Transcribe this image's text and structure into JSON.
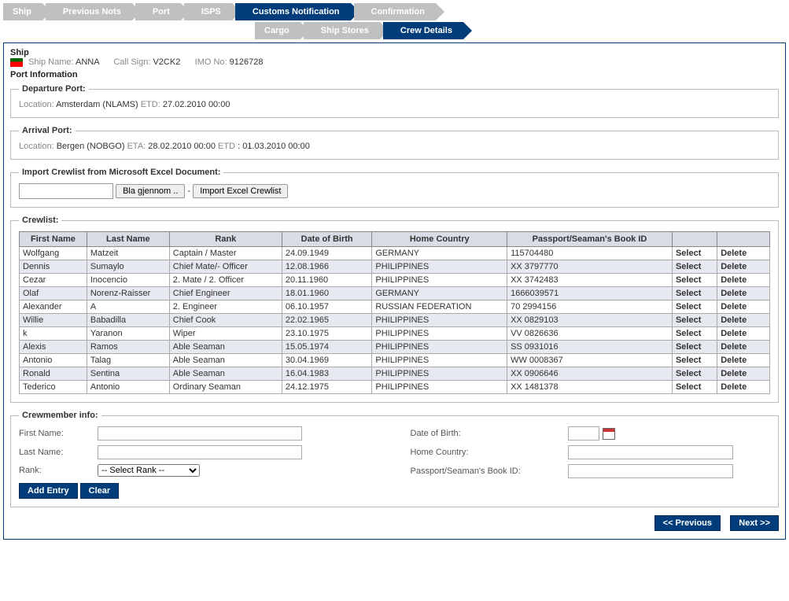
{
  "colors": {
    "accent": "#003d7a",
    "bc_inactive": "#c0c0c0",
    "th_bg": "#d8dde5",
    "row_alt": "#e6e9ef"
  },
  "breadcrumb": {
    "row1": [
      {
        "label": "Ship",
        "active": false
      },
      {
        "label": "Previous Nots",
        "active": false
      },
      {
        "label": "Port",
        "active": false
      },
      {
        "label": "ISPS",
        "active": false
      },
      {
        "label": "Customs Notification",
        "active": true
      },
      {
        "label": "Confirmation",
        "active": false
      }
    ],
    "row2": [
      {
        "label": "Cargo",
        "active": false
      },
      {
        "label": "Ship Stores",
        "active": false
      },
      {
        "label": "Crew Details",
        "active": true
      }
    ]
  },
  "ship": {
    "heading": "Ship",
    "name_label": "Ship Name:",
    "name": "ANNA",
    "callsign_label": "Call Sign:",
    "callsign": "V2CK2",
    "imo_label": "IMO No:",
    "imo": "9126728"
  },
  "port": {
    "heading": "Port Information",
    "departure": {
      "legend": "Departure Port:",
      "location_label": "Location:",
      "location": "Amsterdam (NLAMS)",
      "etd_label": "ETD:",
      "etd": "27.02.2010 00:00"
    },
    "arrival": {
      "legend": "Arrival Port:",
      "location_label": "Location:",
      "location": "Bergen (NOBGO)",
      "eta_label": "ETA:",
      "eta": "28.02.2010 00:00",
      "etd_label": "ETD",
      "etd": "01.03.2010 00:00"
    }
  },
  "import": {
    "legend": "Import Crewlist from Microsoft Excel Document:",
    "browse_btn": "Bla gjennom ..",
    "separator": "-",
    "import_btn": "Import Excel Crewlist"
  },
  "crewlist": {
    "legend": "Crewlist:",
    "columns": [
      "First Name",
      "Last Name",
      "Rank",
      "Date of Birth",
      "Home Country",
      "Passport/Seaman's Book ID"
    ],
    "action_select": "Select",
    "action_delete": "Delete",
    "col_widths_pct": [
      9,
      11,
      15,
      12,
      18,
      22,
      6,
      7
    ],
    "rows": [
      {
        "first": "Wolfgang",
        "last": "Matzeit",
        "rank": "Captain / Master",
        "dob": "24.09.1949",
        "country": "GERMANY",
        "passport": "115704480"
      },
      {
        "first": "Dennis",
        "last": "Sumaylo",
        "rank": "Chief Mate/- Officer",
        "dob": "12.08.1966",
        "country": "PHILIPPINES",
        "passport": "XX 3797770"
      },
      {
        "first": "Cezar",
        "last": "Inocencio",
        "rank": "2. Mate / 2. Officer",
        "dob": "20.11.1960",
        "country": "PHILIPPINES",
        "passport": "XX 3742483"
      },
      {
        "first": "Olaf",
        "last": "Norenz-Raisser",
        "rank": "Chief Engineer",
        "dob": "18.01.1960",
        "country": "GERMANY",
        "passport": "1666039571"
      },
      {
        "first": "Alexander",
        "last": "A",
        "rank": "2. Engineer",
        "dob": "06.10.1957",
        "country": "RUSSIAN FEDERATION",
        "passport": "70 2994156"
      },
      {
        "first": "Willie",
        "last": "Babadilla",
        "rank": "Chief Cook",
        "dob": "22.02.1965",
        "country": "PHILIPPINES",
        "passport": "XX 0829103"
      },
      {
        "first": "k",
        "last": "Yaranon",
        "rank": "Wiper",
        "dob": "23.10.1975",
        "country": "PHILIPPINES",
        "passport": "VV 0826636"
      },
      {
        "first": "Alexis",
        "last": "Ramos",
        "rank": "Able Seaman",
        "dob": "15.05.1974",
        "country": "PHILIPPINES",
        "passport": "SS 0931016"
      },
      {
        "first": "Antonio",
        "last": "Talag",
        "rank": "Able Seaman",
        "dob": "30.04.1969",
        "country": "PHILIPPINES",
        "passport": "WW 0008367"
      },
      {
        "first": "Ronald",
        "last": "Sentina",
        "rank": "Able Seaman",
        "dob": "16.04.1983",
        "country": "PHILIPPINES",
        "passport": "XX 0906646"
      },
      {
        "first": "Tederico",
        "last": "Antonio",
        "rank": "Ordinary Seaman",
        "dob": "24.12.1975",
        "country": "PHILIPPINES",
        "passport": "XX 1481378"
      }
    ]
  },
  "crewform": {
    "legend": "Crewmember info:",
    "first_name_label": "First Name:",
    "last_name_label": "Last Name:",
    "rank_label": "Rank:",
    "rank_placeholder": "-- Select Rank --",
    "dob_label": "Date of Birth:",
    "country_label": "Home Country:",
    "passport_label": "Passport/Seaman's Book ID:",
    "add_btn": "Add Entry",
    "clear_btn": "Clear"
  },
  "footer": {
    "prev": "<< Previous",
    "next": "Next >>"
  }
}
